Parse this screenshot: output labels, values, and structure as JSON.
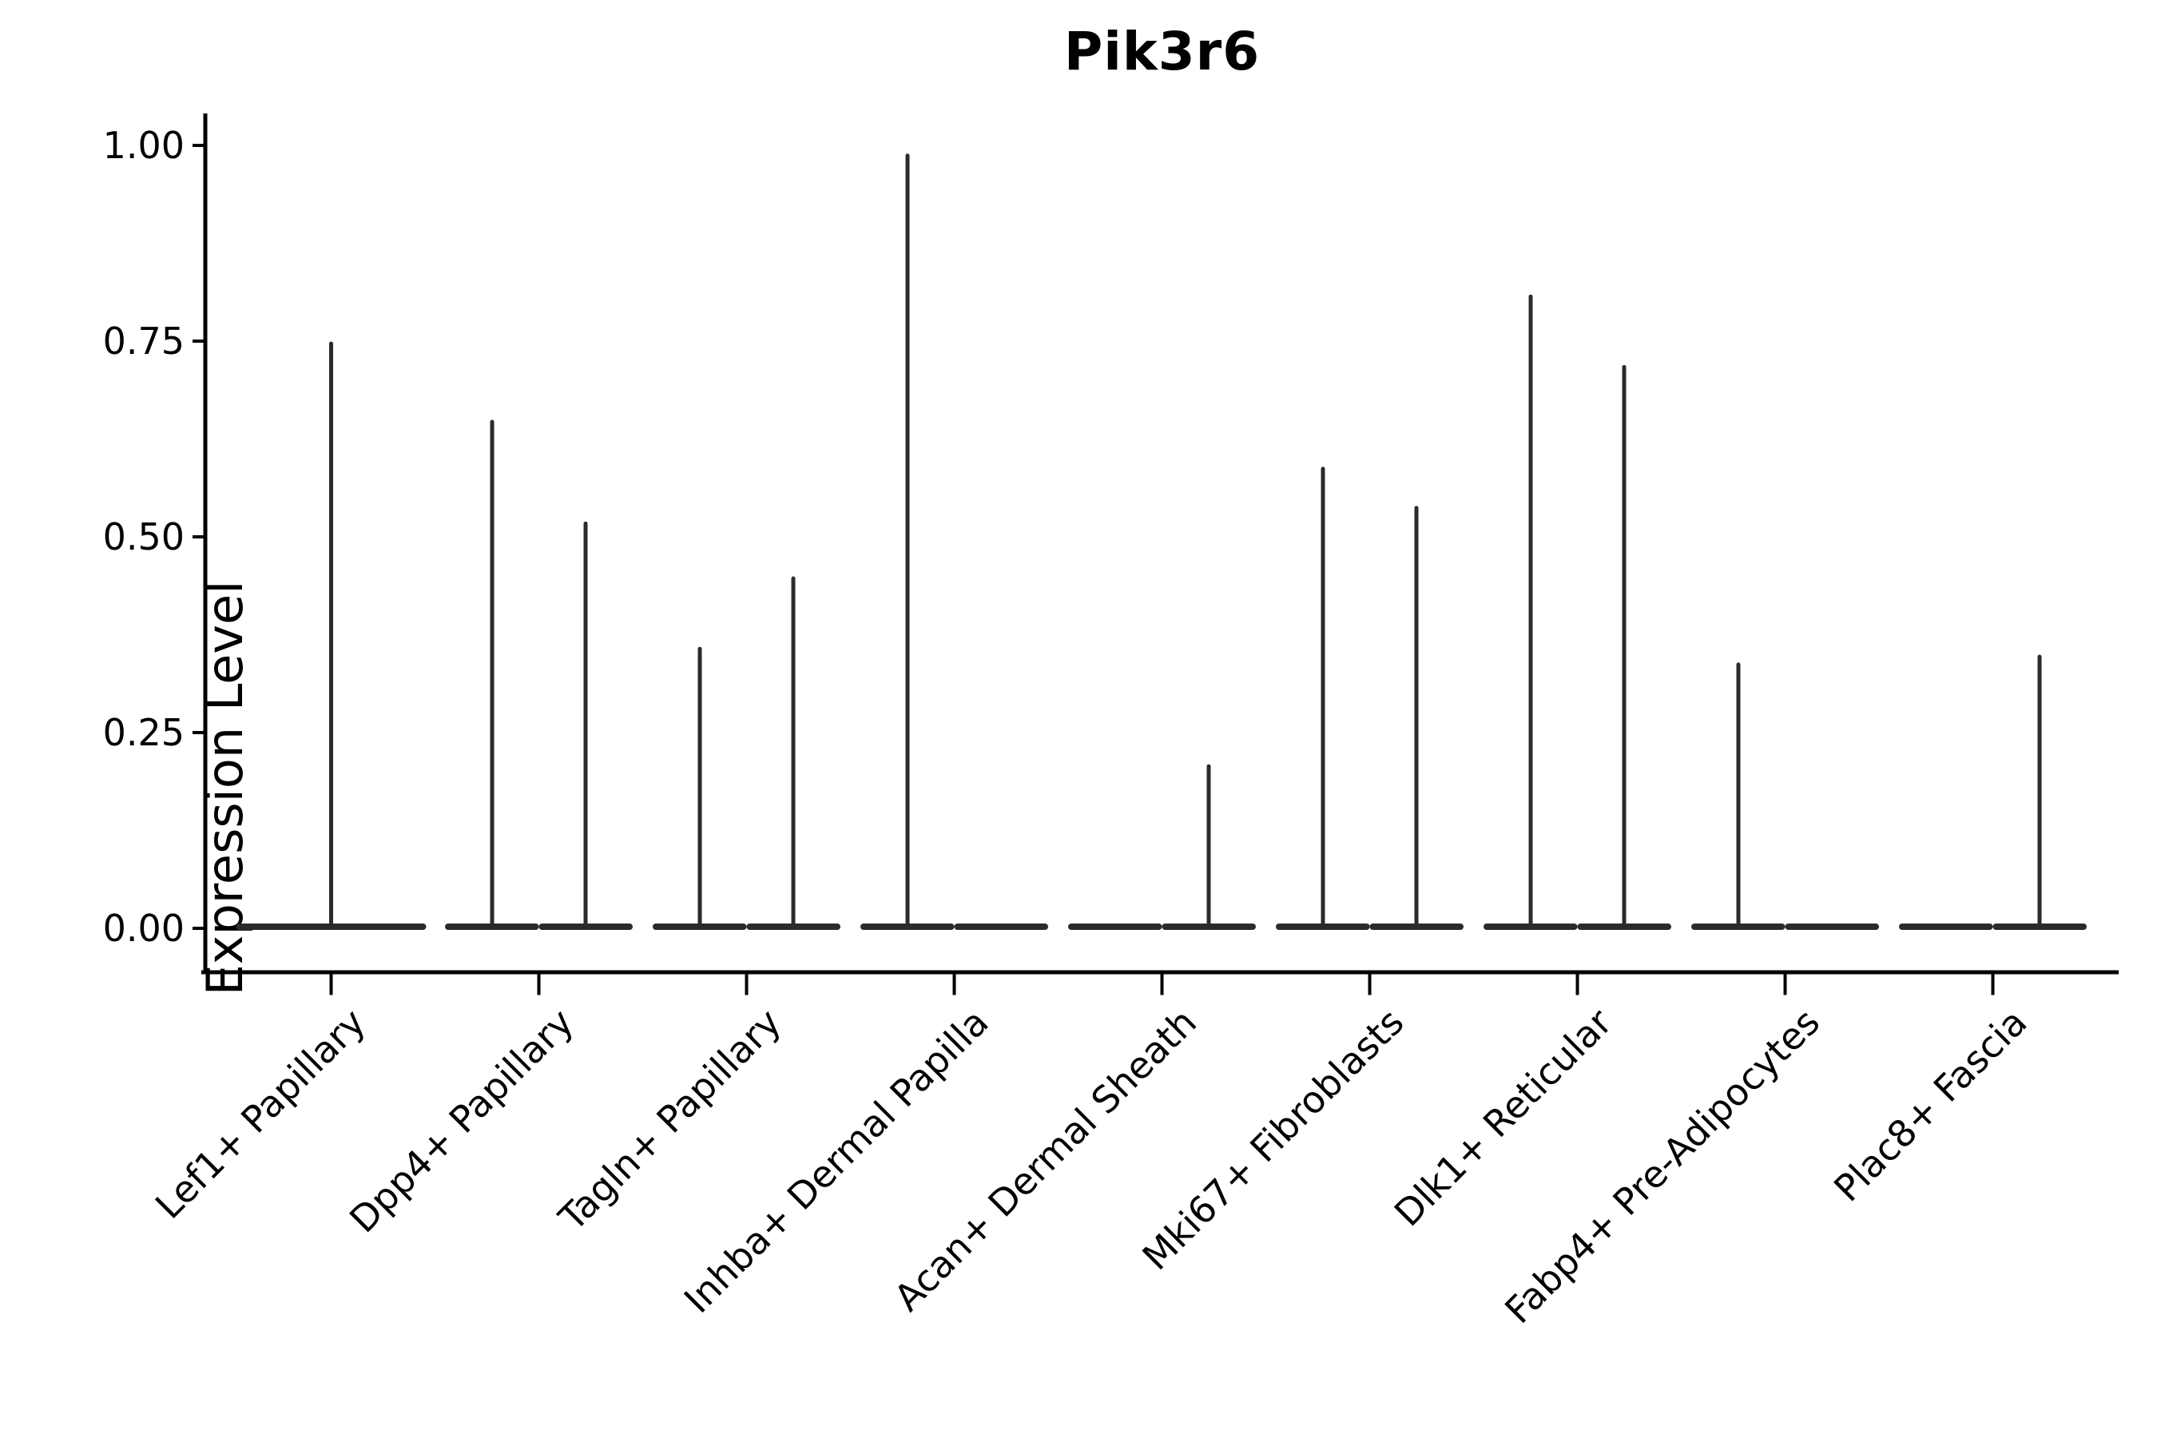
{
  "chart_data": {
    "type": "violin",
    "title": "Pik3r6",
    "ylabel": "Expression Level",
    "xlabel": "",
    "ylim": [
      0,
      1.0
    ],
    "ytick_values": [
      0.0,
      0.25,
      0.5,
      0.75,
      1.0
    ],
    "ytick_labels": [
      "0.00",
      "0.25",
      "0.50",
      "0.75",
      "1.00"
    ],
    "grid": false,
    "legend": "none",
    "background_color": "#ffffff",
    "axis_color": "#000000",
    "violin_color": "#2b2b2b",
    "categories": [
      {
        "label": "Lef1+ Papillary",
        "violins": [
          {
            "position": "center",
            "max": 0.75
          }
        ]
      },
      {
        "label": "Dpp4+ Papillary",
        "violins": [
          {
            "position": "left",
            "max": 0.65
          },
          {
            "position": "right",
            "max": 0.52
          }
        ]
      },
      {
        "label": "Tagln+ Papillary",
        "violins": [
          {
            "position": "left",
            "max": 0.36
          },
          {
            "position": "right",
            "max": 0.45
          }
        ]
      },
      {
        "label": "Inhba+ Dermal Papilla",
        "violins": [
          {
            "position": "left",
            "max": 0.99
          },
          {
            "position": "right",
            "max": 0.0
          }
        ]
      },
      {
        "label": "Acan+ Dermal Sheath",
        "violins": [
          {
            "position": "left",
            "max": 0.0
          },
          {
            "position": "right",
            "max": 0.21
          }
        ]
      },
      {
        "label": "Mki67+ Fibroblasts",
        "violins": [
          {
            "position": "left",
            "max": 0.59
          },
          {
            "position": "right",
            "max": 0.54
          }
        ]
      },
      {
        "label": "Dlk1+ Reticular",
        "violins": [
          {
            "position": "left",
            "max": 0.81
          },
          {
            "position": "right",
            "max": 0.72
          }
        ]
      },
      {
        "label": "Fabp4+ Pre-Adipocytes",
        "violins": [
          {
            "position": "left",
            "max": 0.34
          },
          {
            "position": "right",
            "max": 0.0
          }
        ]
      },
      {
        "label": "Plac8+ Fascia",
        "violins": [
          {
            "position": "left",
            "max": 0.0
          },
          {
            "position": "right",
            "max": 0.35
          }
        ]
      }
    ]
  }
}
